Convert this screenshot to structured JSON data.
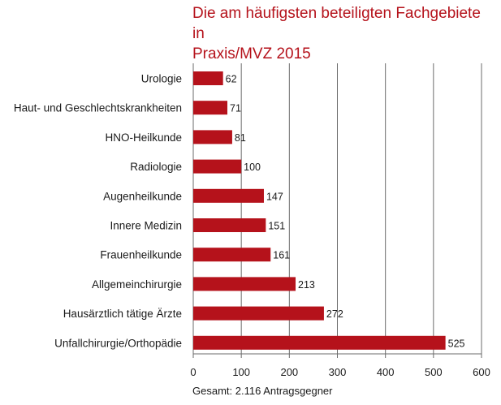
{
  "colors": {
    "title": "#b5121b",
    "bar": "#b5121b",
    "grid": "#6b6b6b",
    "text": "#1a1a1a"
  },
  "chart_data": {
    "type": "bar",
    "orientation": "horizontal",
    "title_lines": [
      "Die am häufigsten beteiligten Fachgebiete in",
      "Praxis/MVZ 2015"
    ],
    "categories": [
      "Urologie",
      "Haut- und Geschlechtskrankheiten",
      "HNO-Heilkunde",
      "Radiologie",
      "Augenheilkunde",
      "Innere Medizin",
      "Frauenheilkunde",
      "Allgemeinchirurgie",
      "Hausärztlich tätige Ärzte",
      "Unfallchirurgie/Orthopädie"
    ],
    "values": [
      62,
      71,
      81,
      100,
      147,
      151,
      161,
      213,
      272,
      525
    ],
    "xlim": [
      0,
      600
    ],
    "xticks": [
      0,
      100,
      200,
      300,
      400,
      500,
      600
    ],
    "grid": true,
    "legend": false,
    "footnote": "Gesamt: 2.116 Antragsgegner"
  }
}
